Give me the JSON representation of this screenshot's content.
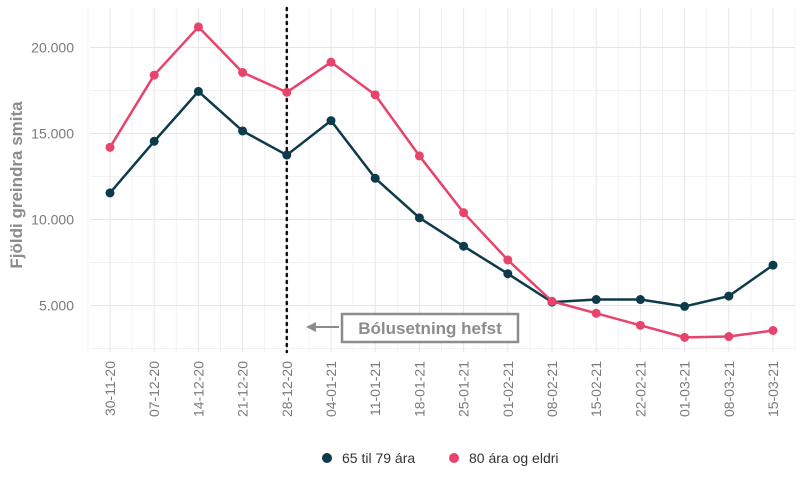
{
  "chart_data": {
    "type": "line",
    "title": "",
    "xlabel": "",
    "ylabel": "Fjöldi greindra smita",
    "categories": [
      "30-11-20",
      "07-12-20",
      "14-12-20",
      "21-12-20",
      "28-12-20",
      "04-01-21",
      "11-01-21",
      "18-01-21",
      "25-01-21",
      "01-02-21",
      "08-02-21",
      "15-02-21",
      "22-02-21",
      "01-03-21",
      "08-03-21",
      "15-03-21"
    ],
    "yticks": [
      5000,
      10000,
      15000,
      20000
    ],
    "ytick_labels": [
      "5.000",
      "10.000",
      "15.000",
      "20.000"
    ],
    "ylim": [
      2300,
      22300
    ],
    "grid": true,
    "legend_position": "bottom",
    "series": [
      {
        "name": "65 til 79 ára",
        "color": "#0d3b4c",
        "values": [
          11550,
          14550,
          17450,
          15150,
          13750,
          15750,
          12400,
          10100,
          8450,
          6850,
          5200,
          5350,
          5350,
          4950,
          5550,
          7350
        ]
      },
      {
        "name": "80 ára og eldri",
        "color": "#e8436b",
        "values": [
          14200,
          18400,
          21200,
          18550,
          17400,
          19150,
          17250,
          13700,
          10400,
          7650,
          5250,
          4550,
          3850,
          3150,
          3200,
          3550
        ]
      }
    ],
    "vline": {
      "category": "28-12-20",
      "style": "dotted",
      "color": "#111111"
    },
    "annotation": {
      "text": "Bólusetning hefst",
      "arrow": "left",
      "color": "#8c8c8c"
    }
  }
}
